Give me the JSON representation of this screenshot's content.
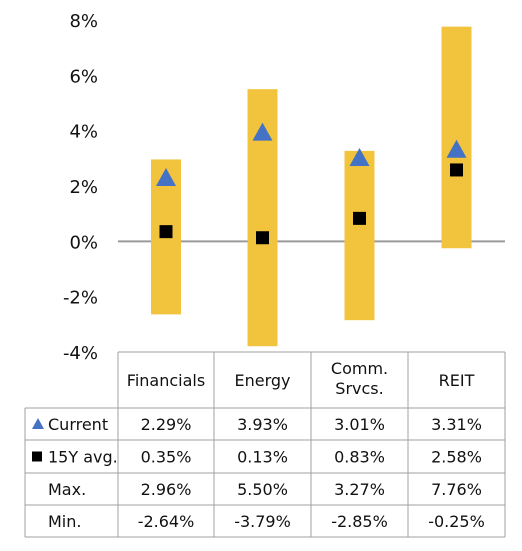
{
  "chart_data": {
    "type": "range-bar",
    "categories": [
      "Financials",
      "Energy",
      "Comm.\nSrvcs.",
      "REIT"
    ],
    "yticks": [
      "8%",
      "6%",
      "4%",
      "2%",
      "0%",
      "-2%",
      "-4%"
    ],
    "ylim": [
      -4,
      8
    ],
    "series": [
      {
        "name": "Current",
        "marker": "triangle",
        "color": "#4472C4",
        "values": [
          2.29,
          3.93,
          3.01,
          3.31
        ]
      },
      {
        "name": "15Y avg.",
        "marker": "square",
        "color": "#000000",
        "values": [
          0.35,
          0.13,
          0.83,
          2.58
        ]
      },
      {
        "name": "Max.",
        "values": [
          2.96,
          5.5,
          3.27,
          7.76
        ]
      },
      {
        "name": "Min.",
        "values": [
          -2.64,
          -3.79,
          -2.85,
          -0.25
        ]
      }
    ],
    "range_color": "#F2C43D",
    "table": {
      "rows": [
        {
          "label": "Current",
          "marker": "triangle",
          "cells": [
            "2.29%",
            "3.93%",
            "3.01%",
            "3.31%"
          ]
        },
        {
          "label": "15Y avg.",
          "marker": "square",
          "cells": [
            "0.35%",
            "0.13%",
            "0.83%",
            "2.58%"
          ]
        },
        {
          "label": "Max.",
          "marker": "",
          "cells": [
            "2.96%",
            "5.50%",
            "3.27%",
            "7.76%"
          ]
        },
        {
          "label": "Min.",
          "marker": "",
          "cells": [
            "-2.64%",
            "-3.79%",
            "-2.85%",
            "-0.25%"
          ]
        }
      ]
    }
  }
}
